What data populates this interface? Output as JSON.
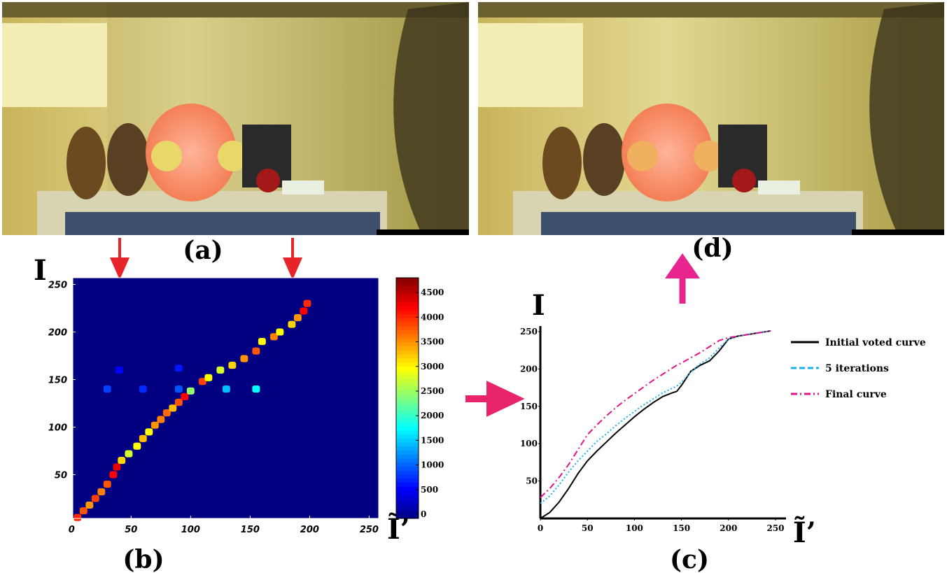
{
  "labels": {
    "a": "(a)",
    "b": "(b)",
    "c": "(c)",
    "d": "(d)"
  },
  "chart_data": [
    {
      "type": "heatmap",
      "y_label": "I",
      "x_label": "Ĩ’",
      "xlim": [
        1,
        258
      ],
      "ylim": [
        4,
        257
      ],
      "xticks": [
        0,
        50,
        100,
        150,
        200,
        250
      ],
      "yticks": [
        50,
        100,
        150,
        200,
        250
      ],
      "clim": [
        0,
        4800
      ],
      "cticks": [
        0,
        500,
        1000,
        1500,
        2000,
        2500,
        3000,
        3500,
        4000,
        4500
      ],
      "x": [
        5,
        10,
        15,
        20,
        25,
        30,
        35,
        38,
        42,
        48,
        55,
        60,
        65,
        70,
        75,
        80,
        85,
        90,
        95,
        100,
        110,
        115,
        125,
        135,
        145,
        155,
        160,
        170,
        175,
        185,
        190,
        195,
        198,
        30,
        60,
        90,
        130,
        155,
        40,
        90
      ],
      "y": [
        5,
        12,
        18,
        25,
        32,
        40,
        50,
        58,
        65,
        72,
        80,
        88,
        95,
        102,
        108,
        115,
        120,
        126,
        132,
        138,
        148,
        152,
        160,
        165,
        172,
        180,
        190,
        195,
        200,
        208,
        215,
        222,
        230,
        140,
        140,
        140,
        140,
        140,
        160,
        162
      ],
      "values": [
        4000,
        3800,
        3500,
        3900,
        3600,
        3800,
        4200,
        4300,
        3200,
        2800,
        3000,
        3300,
        3000,
        3500,
        3600,
        3700,
        3300,
        3800,
        4200,
        2500,
        3900,
        3000,
        2800,
        3200,
        3500,
        3800,
        3000,
        3600,
        3000,
        3200,
        3500,
        4200,
        4000,
        900,
        800,
        1000,
        1500,
        1800,
        600,
        700
      ]
    },
    {
      "type": "line",
      "y_label": "I",
      "x_label": "Ĩ’",
      "xlim": [
        0,
        250
      ],
      "ylim": [
        0,
        250
      ],
      "xticks": [
        0,
        50,
        100,
        150,
        200,
        250
      ],
      "yticks": [
        50,
        100,
        150,
        200,
        250
      ],
      "x": [
        0,
        10,
        20,
        30,
        40,
        50,
        60,
        70,
        80,
        90,
        100,
        110,
        120,
        130,
        140,
        145,
        150,
        160,
        170,
        180,
        190,
        200,
        210,
        220,
        230,
        240,
        245
      ],
      "series": [
        {
          "name": "Initial voted curve",
          "color": "#000000",
          "dash": "solid",
          "values": [
            0,
            8,
            22,
            40,
            60,
            77,
            90,
            102,
            114,
            125,
            136,
            146,
            155,
            163,
            168,
            170,
            178,
            197,
            205,
            211,
            224,
            240,
            244,
            246,
            248,
            250,
            251
          ]
        },
        {
          "name": "5 iterations",
          "color": "#1ab3e6",
          "dash": "dotted",
          "values": [
            20,
            30,
            45,
            62,
            77,
            90,
            103,
            113,
            124,
            134,
            143,
            152,
            160,
            168,
            174,
            177,
            182,
            196,
            207,
            215,
            228,
            240,
            244,
            246,
            248,
            250,
            251
          ]
        },
        {
          "name": "Final curve",
          "color": "#e0158a",
          "dash": "dashdot",
          "values": [
            28,
            40,
            55,
            72,
            92,
            112,
            125,
            137,
            148,
            158,
            167,
            176,
            185,
            193,
            201,
            205,
            208,
            215,
            222,
            230,
            238,
            242,
            244,
            246,
            248,
            250,
            251
          ]
        }
      ]
    }
  ]
}
